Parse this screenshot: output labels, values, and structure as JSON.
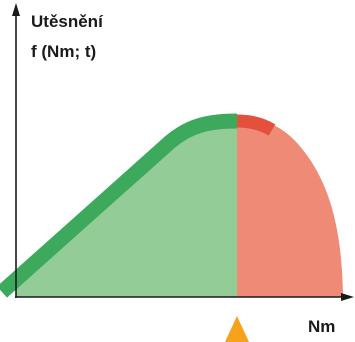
{
  "y_axis_label": {
    "line1": "Utěsnění",
    "line2": "f (Nm; t)"
  },
  "x_axis_label": "Nm",
  "colors": {
    "green_fill": "#93cc97",
    "green_band": "#3da95c",
    "red_fill": "#ef8a76",
    "red_band": "#e3503c",
    "marker": "#f7a21b",
    "axis": "#1a1a1a"
  }
}
